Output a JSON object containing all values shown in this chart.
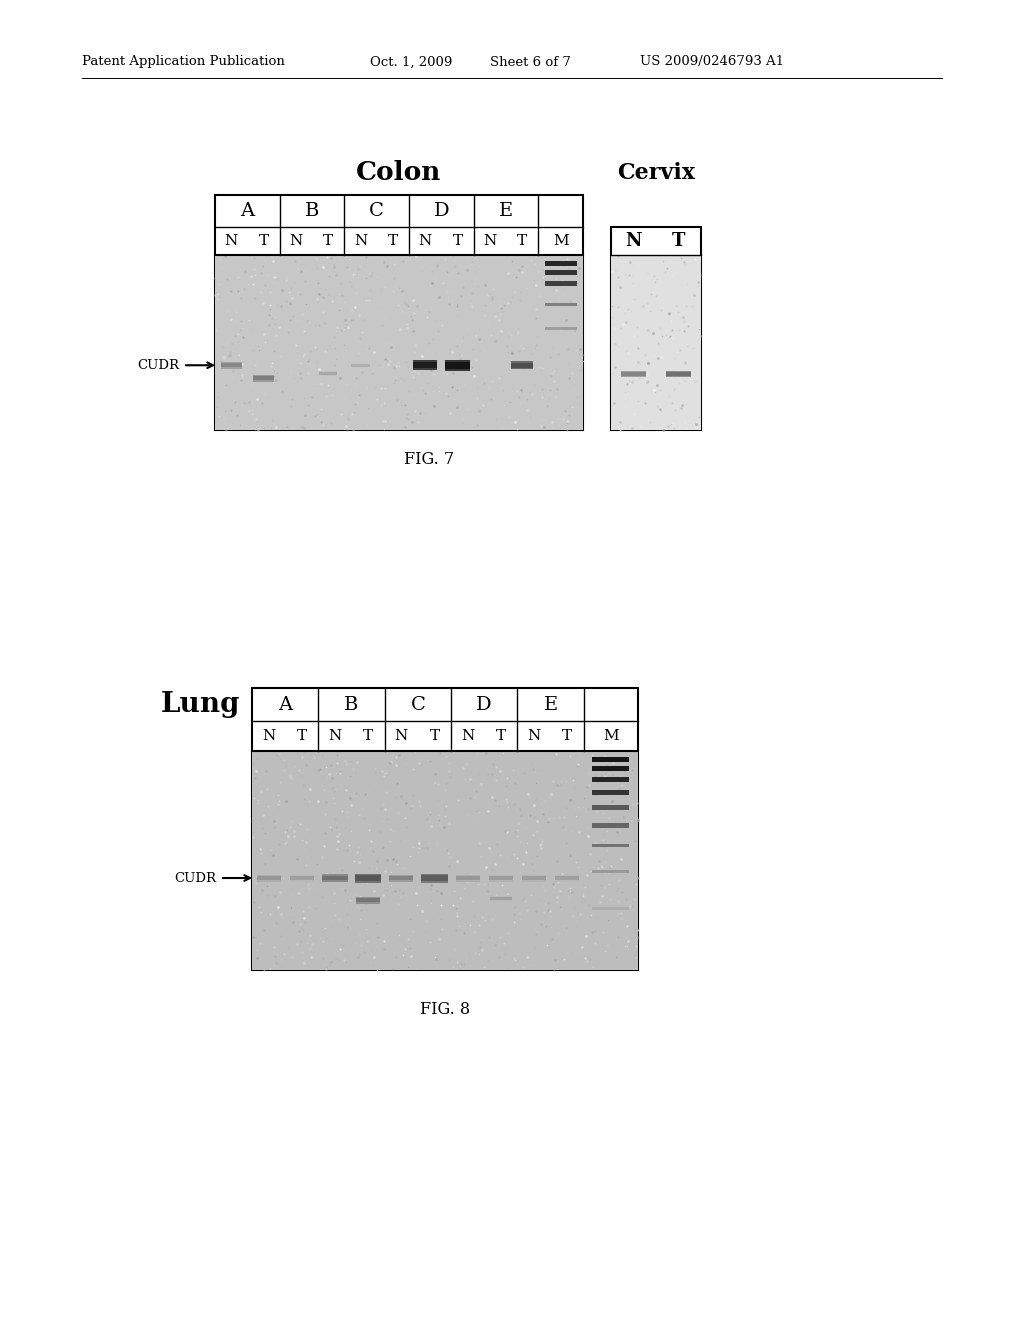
{
  "header_text": "Patent Application Publication",
  "header_date": "Oct. 1, 2009",
  "header_sheet": "Sheet 6 of 7",
  "header_patent": "US 2009/0246793 A1",
  "fig7_title": "Colon",
  "fig7_cervix_title": "Cervix",
  "fig7_label": "FIG. 7",
  "fig8_lung_label": "Lung",
  "fig8_label": "FIG. 8",
  "cudr_label": "CUDR",
  "sample_letters": [
    "A",
    "B",
    "C",
    "D",
    "E"
  ],
  "bg_color": "#ffffff",
  "gel_bg_colon": "#c8c8c8",
  "gel_bg_lung": "#b8b8b8",
  "gel_bg_cervix": "#d8d8d8"
}
